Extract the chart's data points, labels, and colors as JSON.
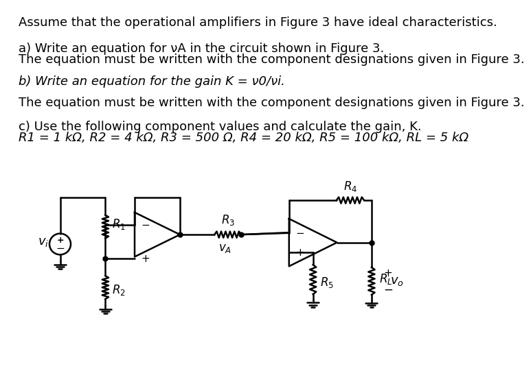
{
  "title_text": "Assume that the operational amplifiers in Figure 3 have ideal characteristics.",
  "line_a1": "a) Write an equation for νA in the circuit shown in Figure 3.",
  "line_a2": "The equation must be written with the component designations given in Figure 3.",
  "line_b1": "b) Write an equation for the gain K = ν0/νi.",
  "line_b2": "The equation must be written with the component designations given in Figure 3.",
  "line_c1": "c) Use the following component values and calculate the gain, K.",
  "line_c2": "R1 = 1 kΩ, R2 = 4 kΩ, R3 = 500 Ω, R4 = 20 kΩ, R5 = 100 kΩ, RL = 5 kΩ",
  "bg_color": "#ffffff",
  "text_color": "#000000",
  "lw": 1.8
}
